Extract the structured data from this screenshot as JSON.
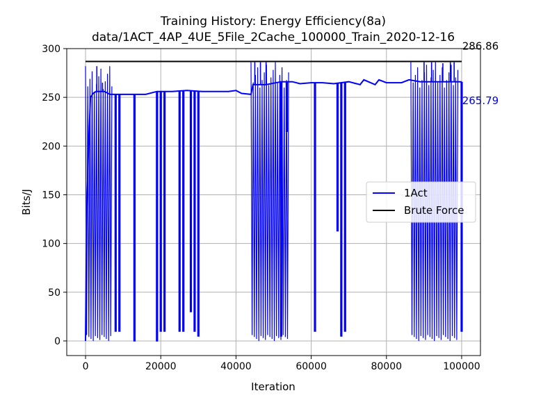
{
  "chart_data": {
    "type": "line",
    "title_line1": "Training History: Energy Efficiency(8a)",
    "title_line2": "data/1ACT_4AP_4UE_5File_2Cache_100000_Train_2020-12-16",
    "xlabel": "Iteration",
    "ylabel": "Bits/J",
    "xlim": [
      -5000,
      105000
    ],
    "ylim": [
      -15,
      300
    ],
    "x_ticks": [
      0,
      20000,
      40000,
      60000,
      80000,
      100000
    ],
    "x_tick_labels": [
      "0",
      "20000",
      "40000",
      "60000",
      "80000",
      "100000"
    ],
    "y_ticks": [
      0,
      50,
      100,
      150,
      200,
      250,
      300
    ],
    "y_tick_labels": [
      "0",
      "50",
      "100",
      "150",
      "200",
      "250",
      "300"
    ],
    "grid": true,
    "legend_placement": "center-right",
    "series": [
      {
        "name": "1Act",
        "color": "#0000ff",
        "final_label": "265.79",
        "baseline": [
          [
            0,
            0
          ],
          [
            300,
            130
          ],
          [
            800,
            200
          ],
          [
            1300,
            250
          ],
          [
            2000,
            254
          ],
          [
            2800,
            256
          ],
          [
            3500,
            256
          ],
          [
            5000,
            256
          ],
          [
            6500,
            253
          ],
          [
            9000,
            253
          ],
          [
            12000,
            253
          ],
          [
            16000,
            253
          ],
          [
            19000,
            256
          ],
          [
            23000,
            256
          ],
          [
            27000,
            257
          ],
          [
            31000,
            256
          ],
          [
            35000,
            256
          ],
          [
            38000,
            256
          ],
          [
            40000,
            257
          ],
          [
            41500,
            254
          ],
          [
            44000,
            253
          ],
          [
            44500,
            263
          ],
          [
            48000,
            263
          ],
          [
            52000,
            266
          ],
          [
            55000,
            266
          ],
          [
            57000,
            264
          ],
          [
            60000,
            265
          ],
          [
            63000,
            265
          ],
          [
            66000,
            264
          ],
          [
            70000,
            266
          ],
          [
            73000,
            263
          ],
          [
            74000,
            268
          ],
          [
            77000,
            263
          ],
          [
            78000,
            268
          ],
          [
            80000,
            265
          ],
          [
            84000,
            265
          ],
          [
            86000,
            268
          ],
          [
            89000,
            266
          ],
          [
            92000,
            266
          ],
          [
            96000,
            266
          ],
          [
            100000,
            266
          ]
        ],
        "dense_bands": [
          [
            0,
            7000,
            0,
            282
          ],
          [
            44000,
            54000,
            0,
            286
          ],
          [
            86500,
            99000,
            0,
            286
          ]
        ],
        "spikes": [
          [
            8000,
            10
          ],
          [
            9000,
            10
          ],
          [
            13000,
            0
          ],
          [
            19000,
            0
          ],
          [
            20000,
            10
          ],
          [
            21000,
            10
          ],
          [
            25000,
            10
          ],
          [
            26000,
            10
          ],
          [
            28000,
            30
          ],
          [
            29000,
            10
          ],
          [
            30000,
            5
          ],
          [
            52000,
            5
          ],
          [
            53500,
            215
          ],
          [
            61000,
            10
          ],
          [
            67000,
            113
          ],
          [
            68000,
            5
          ],
          [
            69000,
            10
          ],
          [
            100000,
            10
          ]
        ],
        "peaks": [
          [
            3000,
            282
          ],
          [
            4500,
            265
          ],
          [
            45000,
            286
          ],
          [
            46500,
            286
          ],
          [
            48000,
            286
          ],
          [
            90000,
            286
          ],
          [
            92000,
            286
          ],
          [
            95000,
            285
          ],
          [
            97000,
            286
          ],
          [
            98000,
            286
          ]
        ]
      },
      {
        "name": "Brute Force",
        "color": "#000000",
        "value": 286.86,
        "final_label": "286.86",
        "x": [
          0,
          100000
        ]
      }
    ]
  }
}
